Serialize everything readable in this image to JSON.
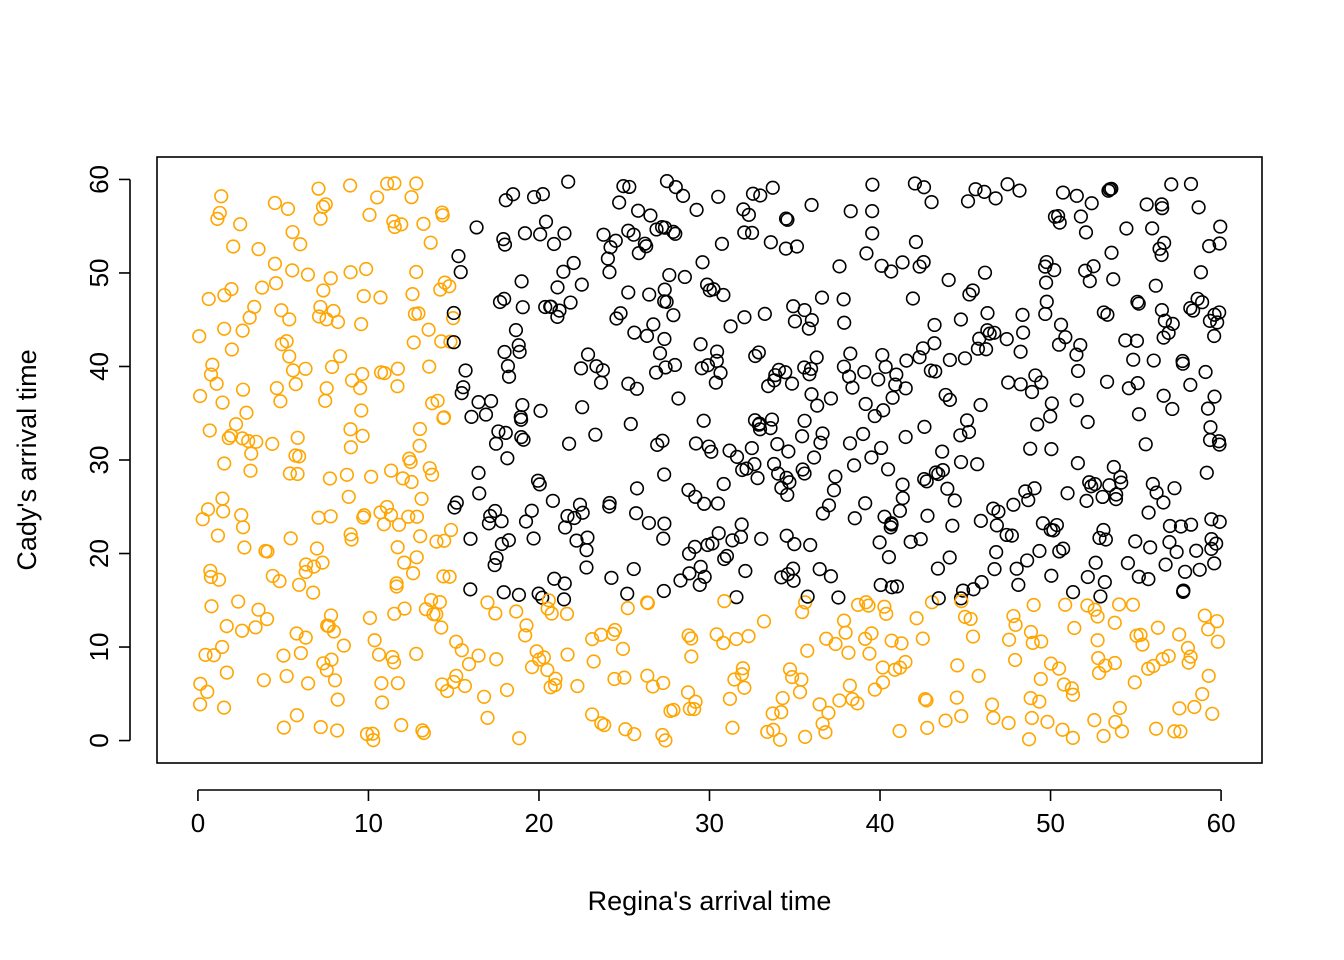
{
  "chart_data": {
    "type": "scatter",
    "title": "",
    "xlabel": "Regina's arrival time",
    "ylabel": "Cady's arrival time",
    "xlim": [
      -2.4,
      62.4
    ],
    "ylim": [
      -2.4,
      62.4
    ],
    "x_ticks": [
      0,
      10,
      20,
      30,
      40,
      50,
      60
    ],
    "y_ticks": [
      0,
      10,
      20,
      30,
      40,
      50,
      60
    ],
    "grid": false,
    "legend": "none",
    "point_shape": "open-circle",
    "colors": {
      "highlight": "#FFA500",
      "default": "#000000"
    },
    "color_rule": "orange when x < 15 or y < 15, otherwise black",
    "n_points": 1000,
    "x_range": [
      0,
      60
    ],
    "y_range": [
      0,
      60
    ]
  }
}
